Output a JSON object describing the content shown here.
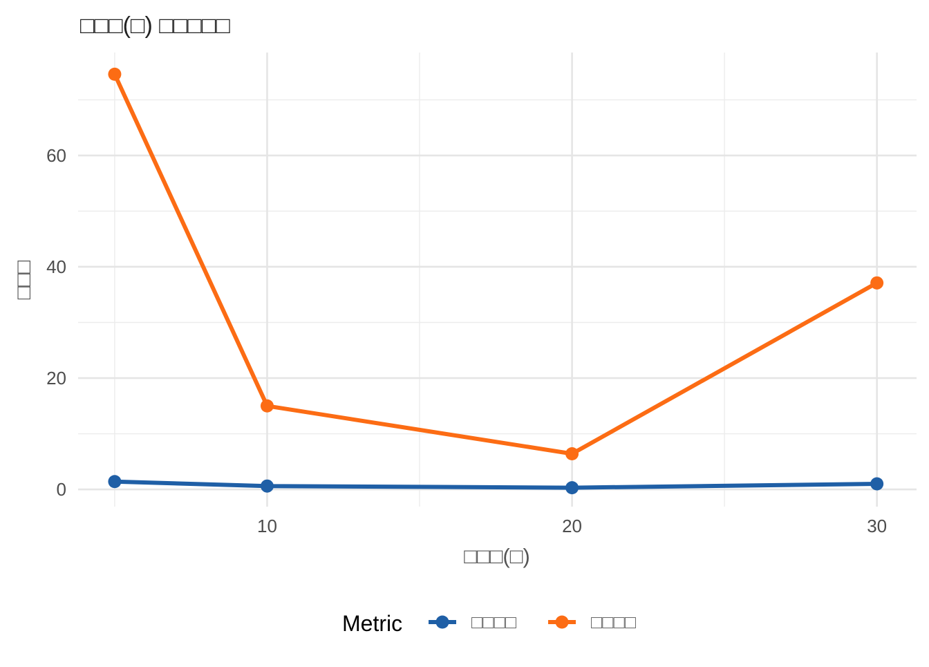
{
  "chart_data": {
    "type": "line",
    "title": "□□□(□) □□□□□",
    "xlabel": "□□□(□)",
    "ylabel": "□□□",
    "x": [
      5,
      10,
      20,
      30
    ],
    "xlim": [
      3.8,
      31.3
    ],
    "ylim": [
      -3.1,
      78.5
    ],
    "x_ticks": [
      10,
      20,
      30
    ],
    "x_minor_ticks": [
      5,
      15,
      25
    ],
    "y_ticks": [
      0,
      20,
      40,
      60
    ],
    "y_minor_ticks": [
      10,
      30,
      50,
      70
    ],
    "grid": true,
    "legend": {
      "title": "Metric",
      "position": "bottom"
    },
    "series": [
      {
        "name": "□□□□",
        "color": "#1f5fa6",
        "values": [
          1.4,
          0.6,
          0.3,
          1.0
        ]
      },
      {
        "name": "□□□□",
        "color": "#fc6c14",
        "values": [
          74.6,
          15.0,
          6.4,
          37.1
        ]
      }
    ]
  }
}
